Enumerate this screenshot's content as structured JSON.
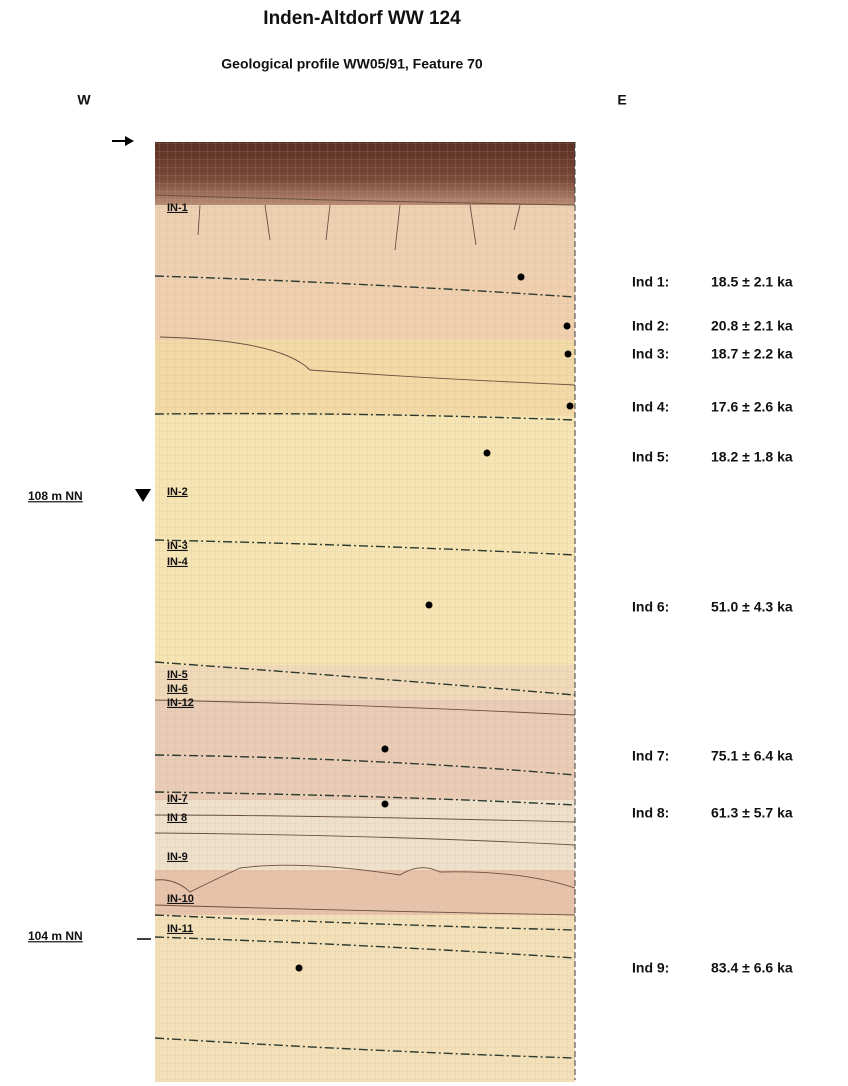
{
  "header": {
    "title": "Inden-Altdorf WW 124",
    "subtitle": "Geological profile WW05/91, Feature 70",
    "west": "W",
    "east": "E"
  },
  "levels": [
    {
      "label": "108 m NN"
    },
    {
      "label": "104 m NN"
    }
  ],
  "units": [
    "IN-1",
    "IN-2",
    "IN-3",
    "IN-4",
    "IN-5",
    "IN-6",
    "IN-12",
    "IN-7",
    "IN 8",
    "IN-9",
    "IN-10",
    "IN-11"
  ],
  "samples": [
    {
      "label": "Ind 1:",
      "age": "18.5 ± 2.1 ka"
    },
    {
      "label": "Ind 2:",
      "age": "20.8 ± 2.1 ka"
    },
    {
      "label": "Ind 3:",
      "age": "18.7 ± 2.2 ka"
    },
    {
      "label": "Ind 4:",
      "age": "17.6 ± 2.6 ka"
    },
    {
      "label": "Ind 5:",
      "age": "18.2 ± 1.8 ka"
    },
    {
      "label": "Ind 6:",
      "age": "51.0 ± 4.3 ka"
    },
    {
      "label": "Ind 7:",
      "age": "75.1 ± 6.4 ka"
    },
    {
      "label": "Ind 8:",
      "age": "61.3 ± 5.7 ka"
    },
    {
      "label": "Ind 9:",
      "age": "83.4 ± 6.6 ka"
    }
  ]
}
